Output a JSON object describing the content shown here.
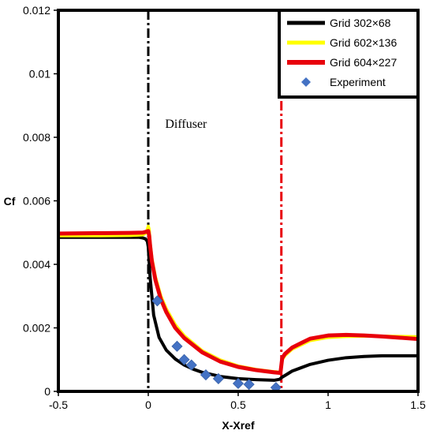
{
  "chart_data": {
    "type": "line",
    "xlabel": "X-Xref",
    "ylabel": "Cf",
    "xlim": [
      -0.5,
      1.5
    ],
    "ylim": [
      0,
      0.012
    ],
    "x_ticks": [
      -0.5,
      0,
      0.5,
      1,
      1.5
    ],
    "x_tick_labels": [
      "-0.5",
      "0",
      "0.5",
      "1",
      "1.5"
    ],
    "y_ticks": [
      0,
      0.002,
      0.004,
      0.006,
      0.008,
      0.01,
      0.012
    ],
    "y_tick_labels": [
      "0",
      "0.002",
      "0.004",
      "0.006",
      "0.008",
      "0.01",
      "0.012"
    ],
    "grid": false,
    "legend_position": "top-right",
    "annotations": [
      {
        "text": "Diffuser",
        "x": 0.21,
        "y": 0.0083
      }
    ],
    "vertical_lines": [
      {
        "x": 0,
        "color": "#000000",
        "style": "dash-dot"
      },
      {
        "x": 0.74,
        "color": "#e8000b",
        "style": "dash-dot"
      }
    ],
    "series": [
      {
        "name": "Grid 302×68",
        "kind": "line",
        "color": "#000000",
        "width": 4,
        "x": [
          -0.5,
          -0.4,
          -0.2,
          -0.05,
          -0.03,
          -0.015,
          -0.005,
          0.0,
          0.01,
          0.03,
          0.06,
          0.1,
          0.15,
          0.2,
          0.25,
          0.3,
          0.4,
          0.5,
          0.6,
          0.7,
          0.73,
          0.745,
          0.76,
          0.8,
          0.9,
          1.0,
          1.1,
          1.2,
          1.3,
          1.4,
          1.5
        ],
        "y": [
          0.00485,
          0.00485,
          0.00485,
          0.00485,
          0.00483,
          0.0048,
          0.00472,
          0.00455,
          0.0036,
          0.0024,
          0.0017,
          0.0013,
          0.00102,
          0.00083,
          0.0007,
          0.0006,
          0.00047,
          0.0004,
          0.00037,
          0.00035,
          0.00038,
          0.00045,
          0.0005,
          0.00064,
          0.00085,
          0.00098,
          0.00106,
          0.0011,
          0.00112,
          0.00112,
          0.00112
        ]
      },
      {
        "name": "Grid 602×136",
        "kind": "line",
        "color": "#ffff00",
        "width": 4,
        "x": [
          -0.5,
          -0.3,
          -0.1,
          -0.03,
          -0.01,
          0.0,
          0.005,
          0.01,
          0.02,
          0.04,
          0.07,
          0.1,
          0.15,
          0.2,
          0.3,
          0.4,
          0.5,
          0.6,
          0.7,
          0.735,
          0.74,
          0.745,
          0.76,
          0.8,
          0.9,
          1.0,
          1.1,
          1.2,
          1.3,
          1.4,
          1.5
        ],
        "y": [
          0.0049,
          0.0049,
          0.00491,
          0.00493,
          0.005,
          0.0052,
          0.0051,
          0.0047,
          0.0042,
          0.0036,
          0.003,
          0.0026,
          0.0021,
          0.00175,
          0.00128,
          0.00099,
          0.0008,
          0.00069,
          0.00062,
          0.0006,
          0.0008,
          0.001,
          0.00113,
          0.00133,
          0.0016,
          0.0017,
          0.00173,
          0.00174,
          0.00174,
          0.00173,
          0.00172
        ]
      },
      {
        "name": "Grid 604×227",
        "kind": "line",
        "color": "#e8000b",
        "width": 5,
        "x": [
          -0.5,
          -0.3,
          -0.1,
          -0.03,
          -0.01,
          0.0,
          0.005,
          0.01,
          0.02,
          0.04,
          0.07,
          0.1,
          0.15,
          0.2,
          0.3,
          0.4,
          0.5,
          0.6,
          0.7,
          0.735,
          0.74,
          0.745,
          0.76,
          0.8,
          0.9,
          1.0,
          1.1,
          1.2,
          1.3,
          1.4,
          1.5
        ],
        "y": [
          0.00497,
          0.00498,
          0.00499,
          0.005,
          0.00503,
          0.00505,
          0.0049,
          0.0046,
          0.0041,
          0.0035,
          0.0029,
          0.0025,
          0.002,
          0.00168,
          0.00123,
          0.00094,
          0.00077,
          0.00067,
          0.0006,
          0.00058,
          0.00082,
          0.00105,
          0.00118,
          0.00138,
          0.00166,
          0.00176,
          0.00178,
          0.00176,
          0.00173,
          0.00169,
          0.00165
        ]
      },
      {
        "name": "Experiment",
        "kind": "scatter",
        "color": "#4472c4",
        "marker": "diamond",
        "x": [
          0.05,
          0.16,
          0.2,
          0.24,
          0.32,
          0.39,
          0.5,
          0.56,
          0.71
        ],
        "y": [
          0.00285,
          0.00142,
          0.001,
          0.00083,
          0.00052,
          0.0004,
          0.00025,
          0.00022,
          0.00012
        ]
      }
    ]
  }
}
